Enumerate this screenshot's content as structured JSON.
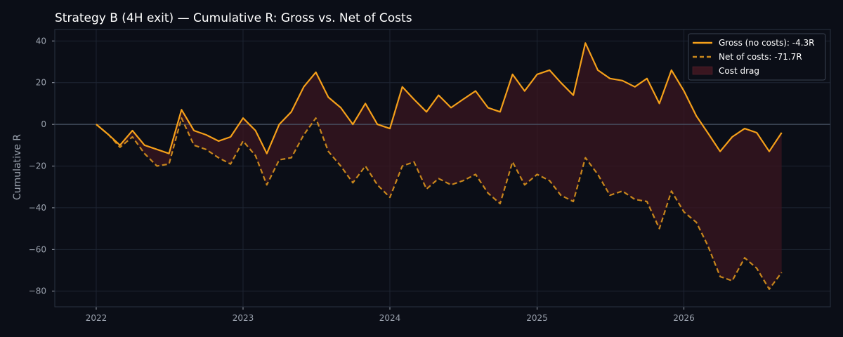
{
  "chart_data": {
    "type": "line",
    "title": "Strategy B (4H exit) — Cumulative R: Gross vs. Net of Costs",
    "xlabel": "",
    "ylabel": "Cumulative R",
    "x_ticks": [
      "2022",
      "2023",
      "2024",
      "2025",
      "2026"
    ],
    "y_ticks": [
      40,
      20,
      0,
      -20,
      -40,
      -60,
      -80
    ],
    "y_tick_labels": [
      "40",
      "20",
      "0",
      "−20",
      "−40",
      "−60",
      "−80"
    ],
    "xlim": [
      "2021-09-20",
      "2026-12-31"
    ],
    "ylim": [
      -87.5,
      45.5
    ],
    "grid": true,
    "legend_position": "top-right",
    "x": [
      "2022-01-01",
      "2022-02-01",
      "2022-03-01",
      "2022-04-01",
      "2022-05-01",
      "2022-06-01",
      "2022-07-01",
      "2022-08-01",
      "2022-09-01",
      "2022-10-01",
      "2022-11-01",
      "2022-12-01",
      "2023-01-01",
      "2023-02-01",
      "2023-03-01",
      "2023-04-01",
      "2023-05-01",
      "2023-06-01",
      "2023-07-01",
      "2023-08-01",
      "2023-09-01",
      "2023-10-01",
      "2023-11-01",
      "2023-12-01",
      "2024-01-01",
      "2024-02-01",
      "2024-03-01",
      "2024-04-01",
      "2024-05-01",
      "2024-06-01",
      "2024-07-01",
      "2024-08-01",
      "2024-09-01",
      "2024-10-01",
      "2024-11-01",
      "2024-12-01",
      "2025-01-01",
      "2025-02-01",
      "2025-03-01",
      "2025-04-01",
      "2025-05-01",
      "2025-06-01",
      "2025-07-01",
      "2025-08-01",
      "2025-09-01",
      "2025-10-01",
      "2025-11-01",
      "2025-12-01",
      "2026-01-01",
      "2026-02-01",
      "2026-03-01",
      "2026-04-01",
      "2026-05-01",
      "2026-06-01",
      "2026-07-01",
      "2026-08-01",
      "2026-09-01"
    ],
    "series": [
      {
        "name": "Gross (no costs): -4.3R",
        "color": "#f5a01a",
        "style": "solid",
        "values": [
          0,
          -5,
          -10,
          -3,
          -10,
          -12,
          -14,
          7,
          -3,
          -5,
          -8,
          -6,
          3,
          -3,
          -14,
          0,
          6,
          18,
          25,
          13,
          8,
          0,
          10,
          0,
          -2,
          18,
          12,
          6,
          14,
          8,
          12,
          16,
          8,
          6,
          24,
          16,
          24,
          26,
          20,
          14,
          39,
          26,
          22,
          21,
          18,
          22,
          10,
          26,
          16,
          4,
          -4,
          -13,
          -6,
          -2,
          -4,
          -13,
          -4
        ]
      },
      {
        "name": "Net of costs: -71.7R",
        "color": "#c8861c",
        "style": "dashed",
        "values": [
          0,
          -5,
          -11,
          -6,
          -14,
          -20,
          -19,
          3,
          -10,
          -12,
          -16,
          -19,
          -8,
          -15,
          -29,
          -17,
          -16,
          -5,
          3,
          -13,
          -20,
          -28,
          -20,
          -29,
          -35,
          -20,
          -18,
          -31,
          -26,
          -29,
          -27,
          -24,
          -33,
          -38,
          -18,
          -29,
          -24,
          -27,
          -34,
          -37,
          -16,
          -24,
          -34,
          -32,
          -36,
          -37,
          -50,
          -32,
          -42,
          -47,
          -58,
          -73,
          -75,
          -64,
          -69,
          -79,
          -71
        ]
      }
    ],
    "fill_between": {
      "name": "Cost drag",
      "color": "#3a1620"
    }
  }
}
